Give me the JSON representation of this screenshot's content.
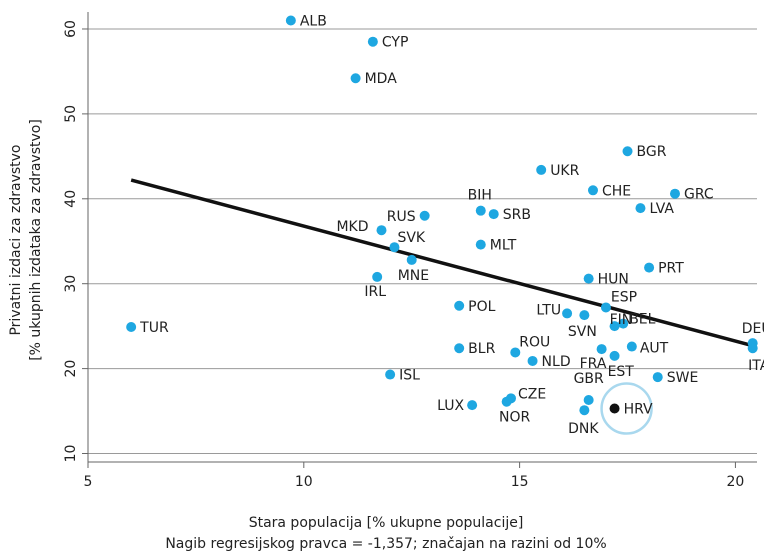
{
  "chart_data": {
    "type": "scatter",
    "xlabel": "Stara populacija [% ukupne populacije]",
    "ylabel_line1": "Privatni izdaci za zdravstvo",
    "ylabel_line2": "[% ukupnih izdataka za zdravstvo]",
    "note": "Nagib regresijskog pravca = -1,357; značajan na razini od 10%",
    "xlim": [
      5,
      20.5
    ],
    "ylim": [
      9,
      62
    ],
    "xticks": [
      5,
      10,
      15,
      20
    ],
    "yticks": [
      10,
      20,
      30,
      40,
      50,
      60
    ],
    "grid": "horizontal",
    "point_color": "#1ea7e1",
    "highlight_color": "#111111",
    "highlight_ring_color": "#a9d8ee",
    "line_color": "#111111",
    "regression": {
      "x": [
        6.0,
        20.4
      ],
      "y": [
        42.2,
        22.7
      ]
    },
    "points": [
      {
        "label": "ALB",
        "x": 9.7,
        "y": 61.0
      },
      {
        "label": "CYP",
        "x": 11.6,
        "y": 58.5
      },
      {
        "label": "MDA",
        "x": 11.2,
        "y": 54.2
      },
      {
        "label": "BGR",
        "x": 17.5,
        "y": 45.6
      },
      {
        "label": "UKR",
        "x": 15.5,
        "y": 43.4
      },
      {
        "label": "CHE",
        "x": 16.7,
        "y": 41.0
      },
      {
        "label": "GRC",
        "x": 18.6,
        "y": 40.6
      },
      {
        "label": "LVA",
        "x": 17.8,
        "y": 38.9
      },
      {
        "label": "BIH",
        "x": 14.1,
        "y": 38.6
      },
      {
        "label": "SRB",
        "x": 14.4,
        "y": 38.2
      },
      {
        "label": "RUS",
        "x": 12.8,
        "y": 38.0
      },
      {
        "label": "MKD",
        "x": 11.8,
        "y": 36.3
      },
      {
        "label": "MLT",
        "x": 14.1,
        "y": 34.6
      },
      {
        "label": "SVK",
        "x": 12.1,
        "y": 34.3
      },
      {
        "label": "MNE",
        "x": 12.5,
        "y": 32.8
      },
      {
        "label": "PRT",
        "x": 18.0,
        "y": 31.9
      },
      {
        "label": "IRL",
        "x": 11.7,
        "y": 30.8
      },
      {
        "label": "HUN",
        "x": 16.6,
        "y": 30.6
      },
      {
        "label": "POL",
        "x": 13.6,
        "y": 27.4
      },
      {
        "label": "ESP",
        "x": 17.0,
        "y": 27.2
      },
      {
        "label": "LTU",
        "x": 16.1,
        "y": 26.5
      },
      {
        "label": "SVN",
        "x": 16.5,
        "y": 26.3
      },
      {
        "label": "BEL",
        "x": 17.4,
        "y": 25.3
      },
      {
        "label": "TUR",
        "x": 6.0,
        "y": 24.9
      },
      {
        "label": "FIN",
        "x": 17.2,
        "y": 25.0
      },
      {
        "label": "DEU",
        "x": 20.4,
        "y": 23.0
      },
      {
        "label": "AUT",
        "x": 17.6,
        "y": 22.6
      },
      {
        "label": "ITA",
        "x": 20.4,
        "y": 22.4
      },
      {
        "label": "BLR",
        "x": 13.6,
        "y": 22.4
      },
      {
        "label": "FRA",
        "x": 16.9,
        "y": 22.3
      },
      {
        "label": "ROU",
        "x": 14.9,
        "y": 21.9
      },
      {
        "label": "EST",
        "x": 17.2,
        "y": 21.5
      },
      {
        "label": "NLD",
        "x": 15.3,
        "y": 20.9
      },
      {
        "label": "ISL",
        "x": 12.0,
        "y": 19.3
      },
      {
        "label": "SWE",
        "x": 18.2,
        "y": 19.0
      },
      {
        "label": "CZE",
        "x": 14.8,
        "y": 16.5
      },
      {
        "label": "NOR",
        "x": 14.7,
        "y": 16.1
      },
      {
        "label": "GBR",
        "x": 16.6,
        "y": 16.3
      },
      {
        "label": "LUX",
        "x": 13.9,
        "y": 15.7
      },
      {
        "label": "DNK",
        "x": 16.5,
        "y": 15.1
      },
      {
        "label": "HRV",
        "x": 17.2,
        "y": 15.3,
        "highlight": true
      }
    ]
  }
}
